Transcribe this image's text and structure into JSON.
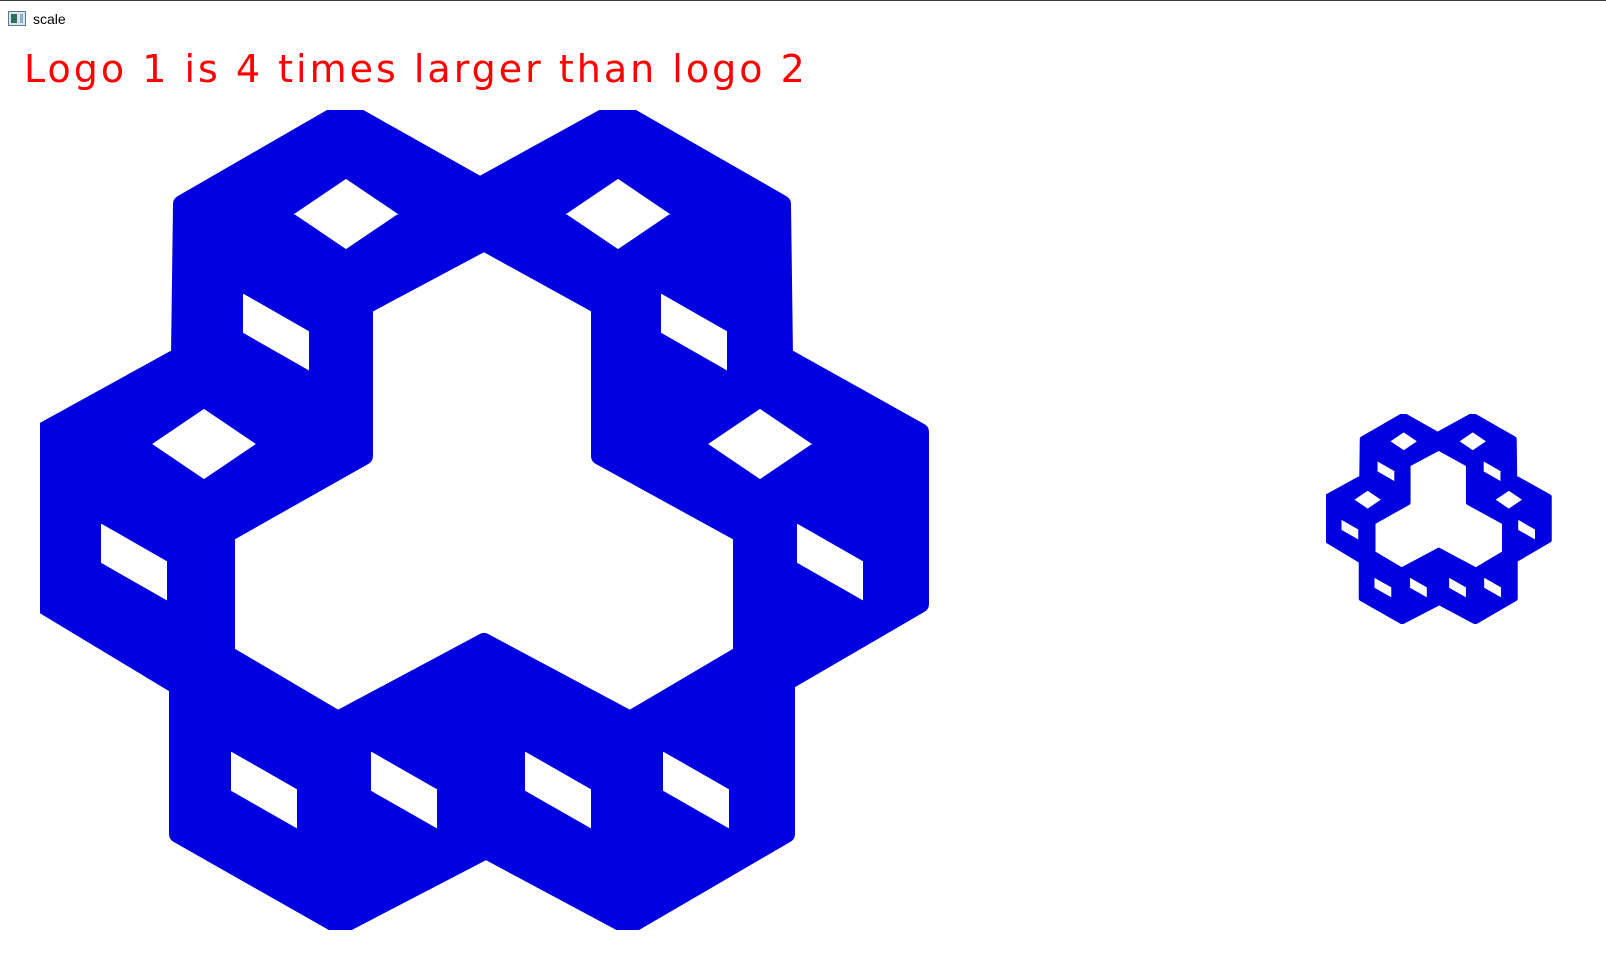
{
  "window": {
    "title": "scale",
    "icon": "opencv-window-icon"
  },
  "caption": {
    "text": "Logo 1 is 4 times larger than logo 2",
    "color": "#ff0000"
  },
  "logos": {
    "color": "#0000e0",
    "scale_ratio": 4
  }
}
